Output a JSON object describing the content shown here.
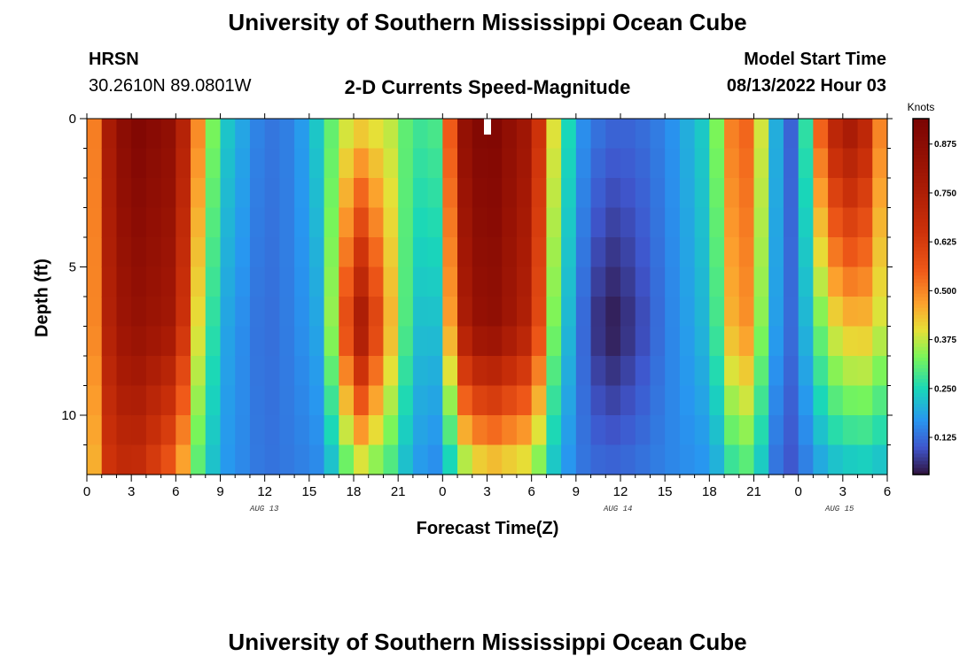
{
  "header": {
    "title": "University of Southern Mississippi Ocean Cube",
    "station": "HRSN",
    "coords": "30.2610N  89.0801W",
    "subtitle": "2-D Currents Speed-Magnitude",
    "model_start_label": "Model Start Time",
    "model_start_value": "08/13/2022 Hour 03",
    "footer_title": "University of Southern Mississippi Ocean Cube"
  },
  "chart_data": {
    "type": "heatmap",
    "title": "2-D Currents Speed-Magnitude",
    "xlabel": "Forecast Time(Z)",
    "ylabel": "Depth (ft)",
    "x_tick_labels": [
      "0",
      "3",
      "6",
      "9",
      "12",
      "15",
      "18",
      "21",
      "0",
      "3",
      "6",
      "9",
      "12",
      "15",
      "18",
      "21",
      "0",
      "3",
      "6"
    ],
    "date_labels": [
      "AUG 13",
      "AUG 14",
      "AUG 15"
    ],
    "y_tick_labels": [
      "0",
      "5",
      "10"
    ],
    "x_range_hours": [
      0,
      54
    ],
    "y_range_ft": [
      0,
      12
    ],
    "colorbar": {
      "label": "Knots",
      "ticks": [
        "0.875",
        "0.750",
        "0.625",
        "0.500",
        "0.375",
        "0.250",
        "0.125"
      ],
      "range": [
        0.03,
        0.94
      ]
    },
    "time_step_hours": 1,
    "depth_step_ft": 1,
    "anchor_hours": [
      0,
      1,
      3,
      6,
      7.5,
      9,
      12,
      14,
      16,
      17,
      18.5,
      20.5,
      22,
      24,
      25,
      27,
      30,
      31.5,
      33,
      35,
      37,
      39,
      42,
      43,
      44,
      45,
      46,
      47,
      48,
      50,
      52,
      53,
      54
    ],
    "surface_speed_kn": [
      0.3,
      0.72,
      0.93,
      0.85,
      0.5,
      0.25,
      0.13,
      0.15,
      0.26,
      0.36,
      0.4,
      0.37,
      0.28,
      0.3,
      0.82,
      0.94,
      0.78,
      0.4,
      0.18,
      0.12,
      0.12,
      0.15,
      0.25,
      0.42,
      0.6,
      0.48,
      0.3,
      0.1,
      0.13,
      0.7,
      0.82,
      0.62,
      0.4
    ],
    "mid_speed_kn": [
      0.3,
      0.7,
      0.85,
      0.78,
      0.4,
      0.2,
      0.12,
      0.15,
      0.2,
      0.5,
      0.78,
      0.45,
      0.22,
      0.22,
      0.72,
      0.88,
      0.72,
      0.33,
      0.15,
      0.03,
      0.07,
      0.14,
      0.22,
      0.35,
      0.55,
      0.42,
      0.26,
      0.1,
      0.15,
      0.38,
      0.45,
      0.42,
      0.35
    ],
    "bottom_speed_kn": [
      0.28,
      0.62,
      0.7,
      0.52,
      0.3,
      0.18,
      0.13,
      0.14,
      0.16,
      0.26,
      0.35,
      0.28,
      0.18,
      0.15,
      0.3,
      0.4,
      0.36,
      0.22,
      0.14,
      0.12,
      0.13,
      0.15,
      0.17,
      0.22,
      0.3,
      0.27,
      0.18,
      0.08,
      0.12,
      0.2,
      0.22,
      0.22,
      0.2
    ]
  }
}
